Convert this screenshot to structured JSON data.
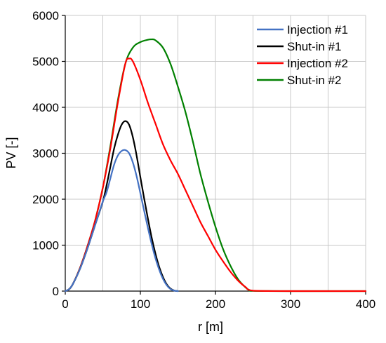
{
  "chart_data": {
    "type": "line",
    "title": "",
    "xlabel": "r [m]",
    "ylabel": "PV [-]",
    "xlim": [
      0,
      400
    ],
    "ylim": [
      0,
      6000
    ],
    "xticks": [
      0,
      100,
      200,
      300,
      400
    ],
    "yticks": [
      0,
      1000,
      2000,
      3000,
      4000,
      5000,
      6000
    ],
    "grid": true,
    "legend": "top-right",
    "series": [
      {
        "name": "Injection #1",
        "color": "#4472c4",
        "x": [
          0,
          5,
          10,
          20,
          30,
          40,
          50,
          55,
          60,
          65,
          70,
          75,
          80,
          85,
          90,
          95,
          100,
          105,
          110,
          115,
          120,
          125,
          130,
          135,
          140,
          145,
          150
        ],
        "y": [
          0,
          40,
          150,
          500,
          950,
          1450,
          1950,
          2150,
          2450,
          2750,
          2950,
          3050,
          3070,
          3000,
          2800,
          2500,
          2130,
          1750,
          1380,
          1030,
          720,
          470,
          270,
          130,
          45,
          10,
          0
        ]
      },
      {
        "name": "Shut-in #1",
        "color": "#000000",
        "x": [
          0,
          5,
          10,
          20,
          30,
          40,
          50,
          55,
          60,
          65,
          70,
          75,
          80,
          85,
          90,
          95,
          100,
          105,
          110,
          115,
          120,
          125,
          130,
          135,
          140,
          145,
          150
        ],
        "y": [
          0,
          40,
          150,
          500,
          950,
          1450,
          1950,
          2300,
          2700,
          3100,
          3400,
          3620,
          3700,
          3620,
          3350,
          2950,
          2480,
          2020,
          1580,
          1170,
          820,
          530,
          310,
          150,
          55,
          12,
          0
        ]
      },
      {
        "name": "Injection #2",
        "color": "#ff0000",
        "x": [
          0,
          5,
          10,
          20,
          30,
          40,
          50,
          60,
          70,
          80,
          85,
          90,
          100,
          110,
          120,
          130,
          140,
          150,
          160,
          170,
          180,
          190,
          200,
          210,
          220,
          230,
          240,
          250,
          300,
          400
        ],
        "y": [
          0,
          40,
          150,
          520,
          1000,
          1550,
          2250,
          3100,
          4100,
          4950,
          5060,
          5000,
          4600,
          4100,
          3650,
          3200,
          2850,
          2550,
          2200,
          1850,
          1500,
          1200,
          900,
          650,
          420,
          230,
          90,
          10,
          0,
          0
        ]
      },
      {
        "name": "Shut-in #2",
        "color": "#008000",
        "x": [
          0,
          5,
          10,
          20,
          30,
          40,
          50,
          60,
          70,
          80,
          90,
          100,
          110,
          115,
          120,
          130,
          140,
          150,
          160,
          170,
          180,
          190,
          200,
          210,
          220,
          230,
          240,
          245,
          250,
          300,
          400
        ],
        "y": [
          0,
          40,
          150,
          520,
          1000,
          1550,
          2250,
          3150,
          4150,
          4950,
          5300,
          5420,
          5470,
          5480,
          5460,
          5300,
          4950,
          4450,
          3900,
          3250,
          2550,
          1950,
          1400,
          920,
          550,
          260,
          80,
          25,
          5,
          0,
          0
        ]
      }
    ]
  }
}
